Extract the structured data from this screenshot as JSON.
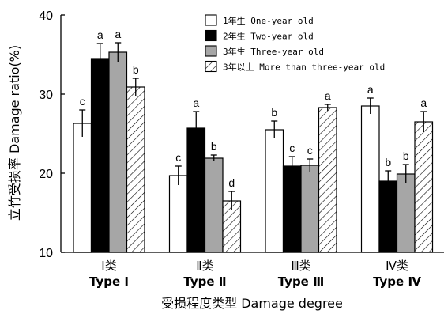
{
  "chart_data": {
    "type": "bar",
    "ylabel": "立竹受损率 Damage ratio(%)",
    "xlabel": "受损程度类型 Damage degree",
    "ylim": [
      10,
      40
    ],
    "yticks": [
      "10",
      "20",
      "30",
      "40"
    ],
    "categories": [
      {
        "cn": "Ⅰ类",
        "en": "Type Ⅰ"
      },
      {
        "cn": "Ⅱ类",
        "en": "Type Ⅱ"
      },
      {
        "cn": "Ⅲ类",
        "en": "Type Ⅲ"
      },
      {
        "cn": "Ⅳ类",
        "en": "Type Ⅳ"
      }
    ],
    "series": [
      {
        "name": "1年生 One-year old",
        "fill": "white",
        "values": [
          26.3,
          19.7,
          25.5,
          28.5
        ],
        "errors": [
          1.7,
          1.2,
          1.1,
          1.0
        ],
        "letters": [
          "c",
          "c",
          "b",
          "a"
        ]
      },
      {
        "name": "2年生 Two-year old",
        "fill": "black",
        "values": [
          34.5,
          25.7,
          20.9,
          19.0
        ],
        "errors": [
          1.9,
          2.1,
          1.2,
          1.3
        ],
        "letters": [
          "a",
          "a",
          "c",
          "b"
        ]
      },
      {
        "name": "3年生 Three-year old",
        "fill": "gray",
        "values": [
          35.3,
          21.9,
          21.0,
          19.9
        ],
        "errors": [
          1.2,
          0.4,
          0.8,
          1.2
        ],
        "letters": [
          "a",
          "b",
          "c",
          "b"
        ]
      },
      {
        "name": "3年以上 More than three-year old",
        "fill": "hatch",
        "values": [
          30.9,
          16.5,
          28.3,
          26.5
        ],
        "errors": [
          1.1,
          1.2,
          0.4,
          1.3
        ],
        "letters": [
          "b",
          "d",
          "a",
          "a"
        ]
      }
    ],
    "legend_position": "top-right",
    "grid": false,
    "colors": {
      "gray": "#a6a6a6",
      "black": "#000000",
      "white": "#ffffff"
    }
  }
}
